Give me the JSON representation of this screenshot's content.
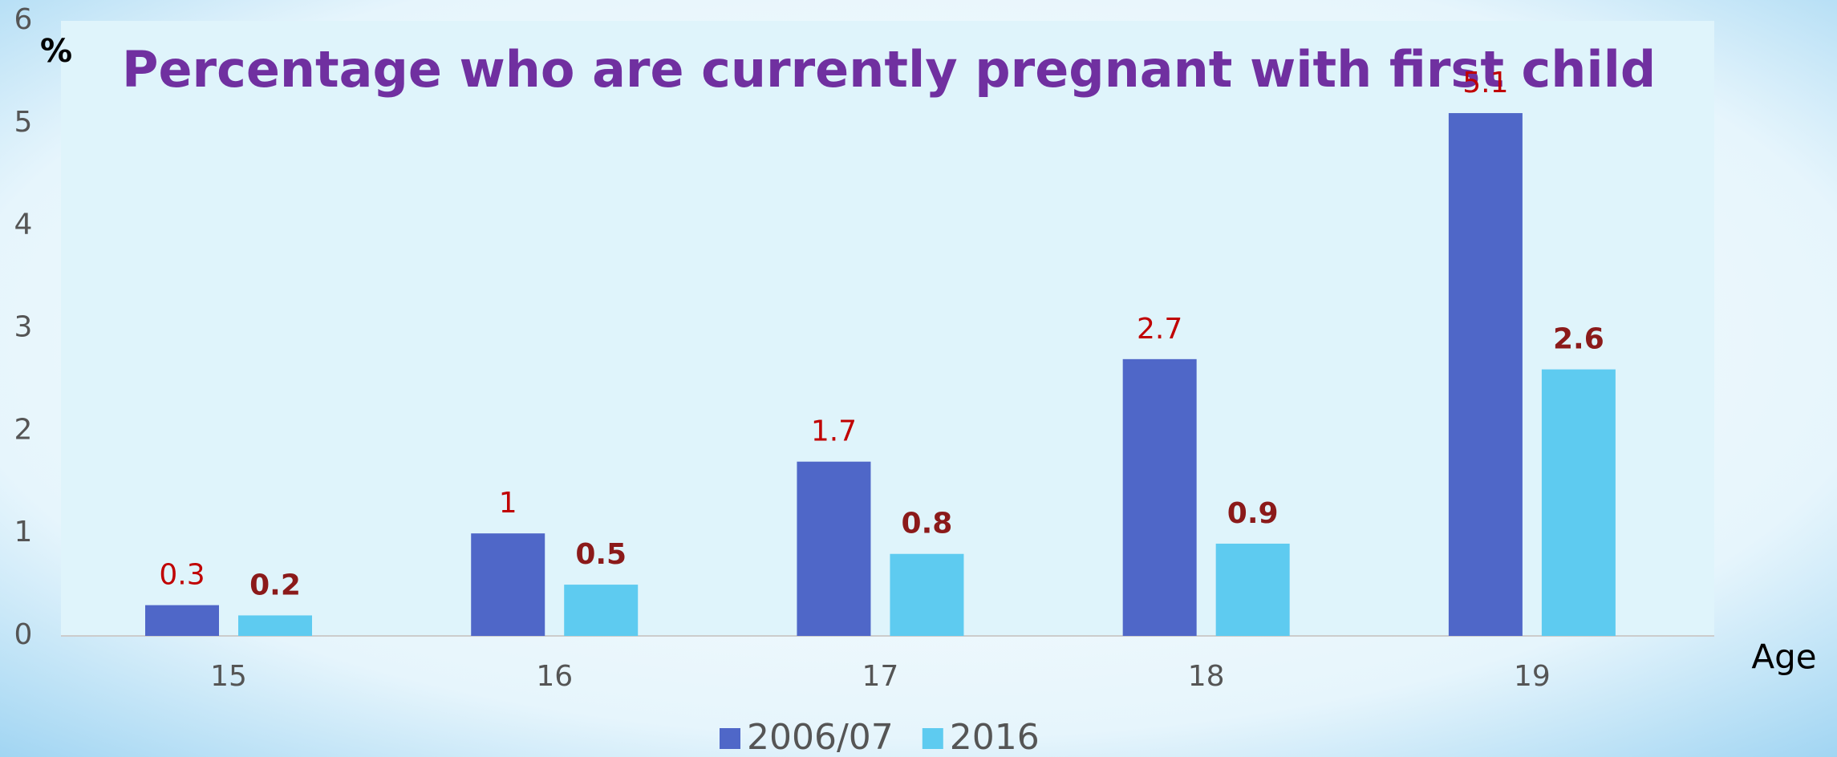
{
  "chart_data": {
    "type": "bar",
    "title": "Percentage who are currently pregnant with first child",
    "y_label": "%",
    "x_label": "Age",
    "categories": [
      "15",
      "16",
      "17",
      "18",
      "19"
    ],
    "series": [
      {
        "name": "2006/07",
        "color": "#4f67c8",
        "label_color": "#c00000",
        "label_bold": false,
        "values": [
          0.3,
          1,
          1.7,
          2.7,
          5.1
        ]
      },
      {
        "name": "2016",
        "color": "#5ecbf0",
        "label_color": "#8b1a1a",
        "label_bold": true,
        "values": [
          0.2,
          0.5,
          0.8,
          0.9,
          2.6
        ]
      }
    ],
    "ylim": [
      0,
      6
    ],
    "yticks": [
      0,
      1,
      2,
      3,
      4,
      5,
      6
    ],
    "grid": false,
    "legend": "bottom"
  }
}
